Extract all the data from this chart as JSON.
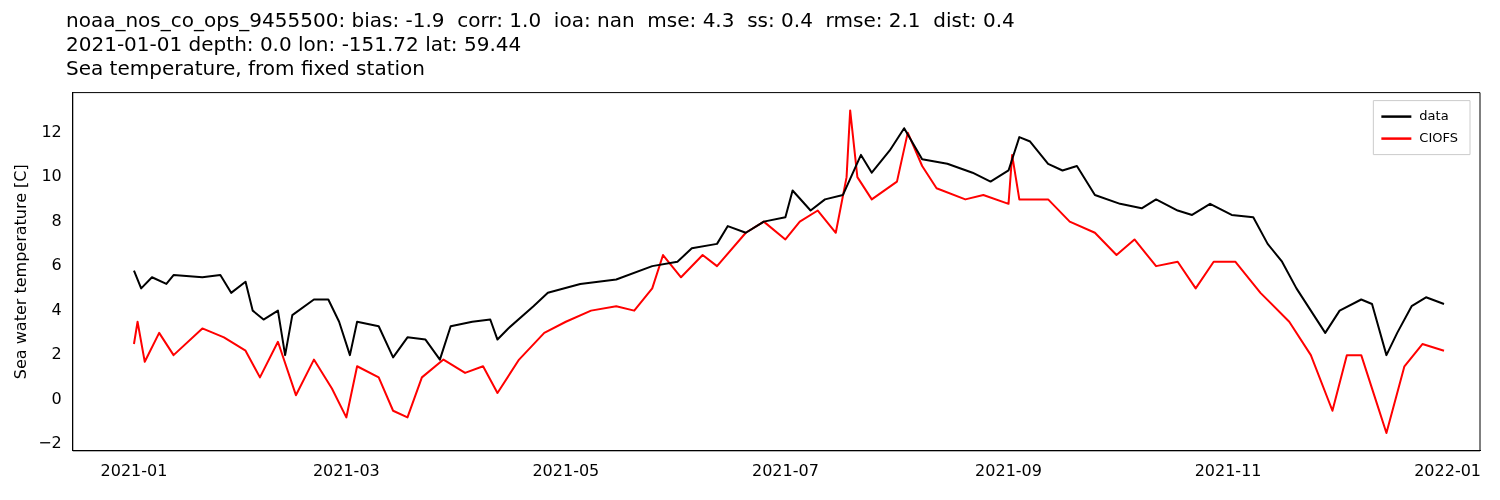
{
  "chart_data": {
    "type": "line",
    "title": "noaa_nos_co_ops_9455500: bias: -1.9  corr: 1.0  ioa: nan  mse: 4.3  ss: 0.4  rmse: 2.1  dist: 0.4",
    "subtitle": "2021-01-01 depth: 0.0 lon: -151.72 lat: 59.44\nSea temperature, from fixed station",
    "ylabel": "Sea water temperature [C]",
    "xlim": [
      "2020-12-15",
      "2022-01-10"
    ],
    "xticks": [
      "2021-01",
      "2021-03",
      "2021-05",
      "2021-07",
      "2021-09",
      "2021-11",
      "2022-01"
    ],
    "ylim": [
      -2.3,
      13.8
    ],
    "yticks": [
      -2,
      0,
      2,
      4,
      6,
      8,
      10,
      12
    ],
    "grid": false,
    "legend": "top right",
    "marker": "none",
    "line_style": "solid",
    "series": [
      {
        "name": "data",
        "color": "#000000",
        "x": [
          "2021-01-01",
          "2021-01-03",
          "2021-01-06",
          "2021-01-10",
          "2021-01-12",
          "2021-01-20",
          "2021-01-25",
          "2021-01-28",
          "2021-02-01",
          "2021-02-03",
          "2021-02-06",
          "2021-02-10",
          "2021-02-12",
          "2021-02-14",
          "2021-02-20",
          "2021-02-24",
          "2021-02-27",
          "2021-03-02",
          "2021-03-04",
          "2021-03-10",
          "2021-03-14",
          "2021-03-18",
          "2021-03-23",
          "2021-03-27",
          "2021-03-30",
          "2021-04-05",
          "2021-04-10",
          "2021-04-12",
          "2021-04-15",
          "2021-04-22",
          "2021-04-26",
          "2021-05-05",
          "2021-05-15",
          "2021-05-25",
          "2021-06-01",
          "2021-06-05",
          "2021-06-12",
          "2021-06-15",
          "2021-06-20",
          "2021-06-25",
          "2021-07-01",
          "2021-07-03",
          "2021-07-08",
          "2021-07-12",
          "2021-07-17",
          "2021-07-22",
          "2021-07-25",
          "2021-07-30",
          "2021-08-03",
          "2021-08-08",
          "2021-08-15",
          "2021-08-22",
          "2021-08-27",
          "2021-09-01",
          "2021-09-04",
          "2021-09-07",
          "2021-09-12",
          "2021-09-16",
          "2021-09-20",
          "2021-09-25",
          "2021-10-02",
          "2021-10-08",
          "2021-10-12",
          "2021-10-18",
          "2021-10-22",
          "2021-10-27",
          "2021-11-02",
          "2021-11-08",
          "2021-11-12",
          "2021-11-16",
          "2021-11-20",
          "2021-11-24",
          "2021-11-28",
          "2021-12-02",
          "2021-12-08",
          "2021-12-11",
          "2021-12-15",
          "2021-12-18",
          "2021-12-22",
          "2021-12-26",
          "2021-12-31"
        ],
        "values": [
          5.8,
          5.0,
          5.5,
          5.2,
          5.6,
          5.5,
          5.6,
          4.8,
          5.3,
          4.0,
          3.6,
          4.0,
          2.0,
          3.8,
          4.5,
          4.5,
          3.5,
          2.0,
          3.5,
          3.3,
          1.9,
          2.8,
          2.7,
          1.8,
          3.3,
          3.5,
          3.6,
          2.7,
          3.2,
          4.2,
          4.8,
          5.2,
          5.4,
          6.0,
          6.2,
          6.8,
          7.0,
          7.8,
          7.5,
          8.0,
          8.2,
          9.4,
          8.5,
          9.0,
          9.2,
          11.0,
          10.2,
          11.2,
          12.2,
          10.8,
          10.6,
          10.2,
          9.8,
          10.3,
          11.8,
          11.6,
          10.6,
          10.3,
          10.5,
          9.2,
          8.8,
          8.6,
          9.0,
          8.5,
          8.3,
          8.8,
          8.3,
          8.2,
          7.0,
          6.2,
          5.0,
          4.0,
          3.0,
          4.0,
          4.5,
          4.3,
          2.0,
          3.0,
          4.2,
          4.6,
          4.3
        ]
      },
      {
        "name": "CIOFS",
        "color": "#ff0000",
        "x": [
          "2021-01-01",
          "2021-01-02",
          "2021-01-04",
          "2021-01-08",
          "2021-01-12",
          "2021-01-20",
          "2021-01-26",
          "2021-02-01",
          "2021-02-05",
          "2021-02-10",
          "2021-02-15",
          "2021-02-20",
          "2021-02-25",
          "2021-03-01",
          "2021-03-04",
          "2021-03-10",
          "2021-03-14",
          "2021-03-18",
          "2021-03-22",
          "2021-03-28",
          "2021-04-03",
          "2021-04-08",
          "2021-04-12",
          "2021-04-18",
          "2021-04-25",
          "2021-05-01",
          "2021-05-08",
          "2021-05-15",
          "2021-05-20",
          "2021-05-25",
          "2021-05-28",
          "2021-06-02",
          "2021-06-08",
          "2021-06-12",
          "2021-06-20",
          "2021-06-25",
          "2021-07-01",
          "2021-07-05",
          "2021-07-10",
          "2021-07-15",
          "2021-07-18",
          "2021-07-19",
          "2021-07-21",
          "2021-07-25",
          "2021-08-01",
          "2021-08-04",
          "2021-08-08",
          "2021-08-12",
          "2021-08-20",
          "2021-08-25",
          "2021-09-01",
          "2021-09-02",
          "2021-09-04",
          "2021-09-12",
          "2021-09-18",
          "2021-09-25",
          "2021-10-01",
          "2021-10-06",
          "2021-10-12",
          "2021-10-18",
          "2021-10-23",
          "2021-10-28",
          "2021-11-03",
          "2021-11-10",
          "2021-11-18",
          "2021-11-24",
          "2021-11-30",
          "2021-12-04",
          "2021-12-08",
          "2021-12-12",
          "2021-12-15",
          "2021-12-20",
          "2021-12-25",
          "2021-12-31"
        ],
        "values": [
          2.5,
          3.5,
          1.7,
          3.0,
          2.0,
          3.2,
          2.8,
          2.2,
          1.0,
          2.6,
          0.2,
          1.8,
          0.5,
          -0.8,
          1.5,
          1.0,
          -0.5,
          -0.8,
          1.0,
          1.8,
          1.2,
          1.5,
          0.3,
          1.8,
          3.0,
          3.5,
          4.0,
          4.2,
          4.0,
          5.0,
          6.5,
          5.5,
          6.5,
          6.0,
          7.5,
          8.0,
          7.2,
          8.0,
          8.5,
          7.5,
          10.0,
          13.0,
          10.0,
          9.0,
          9.8,
          12.0,
          10.5,
          9.5,
          9.0,
          9.2,
          8.8,
          11.0,
          9.0,
          9.0,
          8.0,
          7.5,
          6.5,
          7.2,
          6.0,
          6.2,
          5.0,
          6.2,
          6.2,
          4.8,
          3.5,
          2.0,
          -0.5,
          2.0,
          2.0,
          0.0,
          -1.5,
          1.5,
          2.5,
          2.2
        ]
      }
    ]
  }
}
